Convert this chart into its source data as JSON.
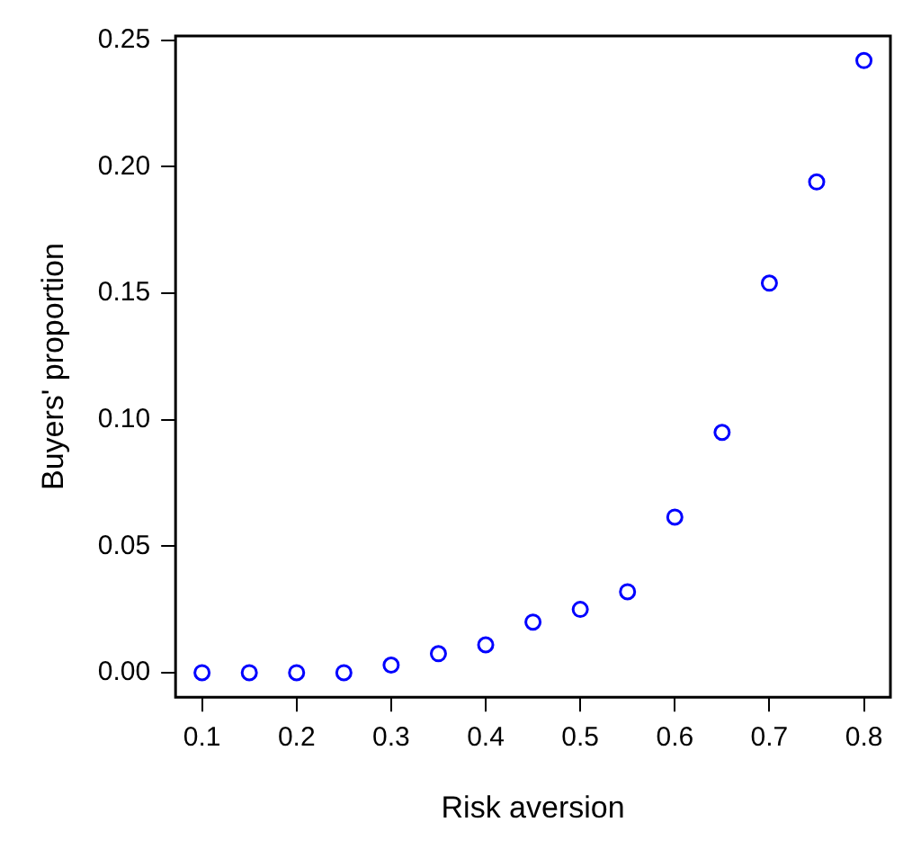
{
  "chart_data": {
    "type": "scatter",
    "xlabel": "Risk aversion",
    "ylabel": "Buyers' proportion",
    "x": [
      0.1,
      0.15,
      0.2,
      0.25,
      0.3,
      0.35,
      0.4,
      0.45,
      0.5,
      0.55,
      0.6,
      0.65,
      0.7,
      0.75,
      0.8
    ],
    "series": [
      {
        "color": "#0000ff",
        "values": [
          0,
          0,
          0,
          0,
          0.003,
          0.0075,
          0.011,
          0.02,
          0.025,
          0.032,
          0.0615,
          0.095,
          0.154,
          0.194,
          0.242
        ]
      }
    ],
    "xlim": [
      0.072,
      0.828
    ],
    "xticks": [
      0.1,
      0.2,
      0.3,
      0.4,
      0.5,
      0.6,
      0.7,
      0.8
    ],
    "ylim": [
      -0.0097,
      0.2517
    ],
    "yticks": [
      {
        "value": 0,
        "label": "0.00"
      },
      {
        "value": 0.05,
        "label": "0.05"
      },
      {
        "value": 0.1,
        "label": "0.10"
      },
      {
        "value": 0.15,
        "label": "0.15"
      },
      {
        "value": 0.2,
        "label": "0.20"
      },
      {
        "value": 0.25,
        "label": "0.25"
      }
    ],
    "grid": false,
    "legend": false,
    "marker": "circle"
  }
}
